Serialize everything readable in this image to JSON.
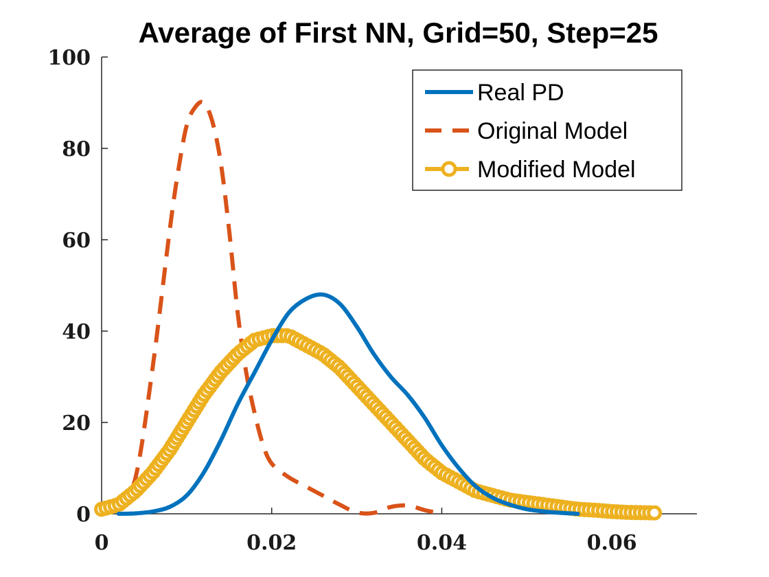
{
  "chart_data": {
    "type": "line",
    "title": "Average of First NN, Grid=50, Step=25",
    "xlabel": "",
    "ylabel": "",
    "xlim": [
      0,
      0.07
    ],
    "ylim": [
      0,
      100
    ],
    "x_ticks": [
      0,
      0.02,
      0.04,
      0.06
    ],
    "x_tick_labels": [
      "0",
      "0.02",
      "0.04",
      "0.06"
    ],
    "y_ticks": [
      0,
      20,
      40,
      60,
      80,
      100
    ],
    "y_tick_labels": [
      "0",
      "20",
      "40",
      "60",
      "80",
      "100"
    ],
    "grid": false,
    "legend_position": "top-right",
    "series": [
      {
        "name": "Real PD",
        "color": "#0072bd",
        "style": "solid",
        "x": [
          0.002,
          0.004,
          0.006,
          0.008,
          0.01,
          0.012,
          0.014,
          0.016,
          0.018,
          0.02,
          0.022,
          0.024,
          0.026,
          0.028,
          0.03,
          0.032,
          0.034,
          0.036,
          0.038,
          0.04,
          0.042,
          0.044,
          0.046,
          0.048,
          0.05,
          0.052,
          0.054,
          0.056
        ],
        "y": [
          0,
          0.1,
          0.5,
          1.5,
          4,
          9,
          16,
          24,
          31,
          38,
          44,
          47,
          48,
          46,
          41,
          35,
          30,
          26,
          21,
          15,
          10,
          6,
          3.5,
          2,
          1,
          0.5,
          0.2,
          0
        ]
      },
      {
        "name": "Original Model",
        "color": "#d95319",
        "style": "dashed",
        "x": [
          0.002,
          0.004,
          0.006,
          0.008,
          0.009,
          0.01,
          0.011,
          0.012,
          0.013,
          0.014,
          0.015,
          0.016,
          0.017,
          0.018,
          0.019,
          0.02,
          0.022,
          0.024,
          0.026,
          0.028,
          0.03,
          0.032,
          0.034,
          0.036,
          0.038,
          0.04
        ],
        "y": [
          1,
          8,
          32,
          62,
          75,
          85,
          89,
          90,
          86,
          77,
          62,
          44,
          31,
          22,
          15,
          11,
          8,
          6,
          4,
          2,
          0.3,
          0.2,
          1.5,
          1.8,
          0.8,
          0
        ]
      },
      {
        "name": "Modified Model",
        "color": "#edb120",
        "style": "dashed-circle",
        "x": [
          0,
          0.002,
          0.004,
          0.006,
          0.008,
          0.01,
          0.012,
          0.014,
          0.016,
          0.018,
          0.02,
          0.022,
          0.024,
          0.026,
          0.028,
          0.03,
          0.032,
          0.034,
          0.036,
          0.038,
          0.04,
          0.042,
          0.044,
          0.046,
          0.048,
          0.05,
          0.052,
          0.054,
          0.056,
          0.058,
          0.06,
          0.062,
          0.065
        ],
        "y": [
          1,
          2,
          5,
          9,
          14,
          20,
          26,
          31,
          35,
          38,
          39,
          39,
          37,
          35,
          32,
          28,
          24,
          20,
          16,
          12,
          9,
          7,
          5,
          4,
          3,
          2.5,
          2,
          1.5,
          1,
          0.8,
          0.5,
          0.3,
          0.2
        ]
      }
    ]
  }
}
